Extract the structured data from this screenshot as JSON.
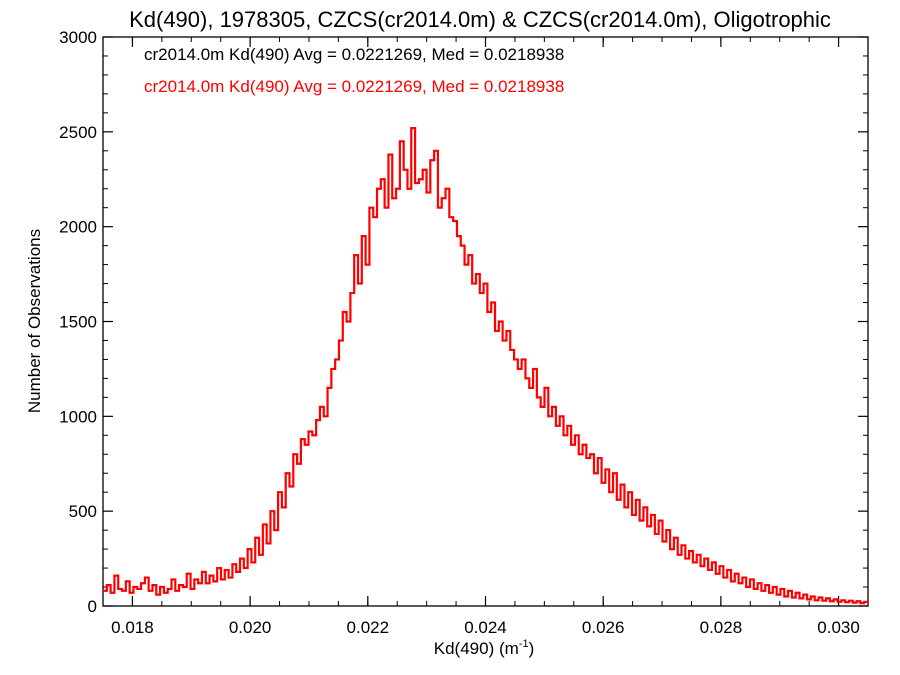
{
  "chart_data": {
    "type": "histogram",
    "title": "Kd(490), 1978305, CZCS(cr2014.0m) & CZCS(cr2014.0m), Oligotrophic",
    "xlabel": "Kd(490) (m",
    "xlabel_sup": "-1",
    "xlabel_close": ")",
    "ylabel": "Number of Observations",
    "xlim": [
      0.0175,
      0.0305
    ],
    "ylim": [
      0,
      3000
    ],
    "x_ticks": [
      0.018,
      0.02,
      0.022,
      0.024,
      0.026,
      0.028,
      0.03
    ],
    "x_tick_labels": [
      "0.018",
      "0.020",
      "0.022",
      "0.024",
      "0.026",
      "0.028",
      "0.030"
    ],
    "y_ticks": [
      0,
      500,
      1000,
      1500,
      2000,
      2500,
      3000
    ],
    "y_tick_labels": [
      "0",
      "500",
      "1000",
      "1500",
      "2000",
      "2500",
      "3000"
    ],
    "grid": false,
    "legend_position": "top-left",
    "legend": [
      {
        "text": "cr2014.0m Kd(490) Avg = 0.0221269, Med = 0.0218938",
        "color": "#000000"
      },
      {
        "text": "cr2014.0m Kd(490) Avg = 0.0221269, Med = 0.0218938",
        "color": "#ff0000"
      }
    ],
    "series": [
      {
        "color": "#ff0000",
        "bin_width": 6.51e-05,
        "x_start": 0.0175,
        "values": [
          80,
          110,
          70,
          160,
          90,
          80,
          130,
          70,
          100,
          90,
          120,
          150,
          80,
          110,
          60,
          100,
          70,
          90,
          140,
          80,
          110,
          100,
          170,
          90,
          140,
          120,
          180,
          120,
          160,
          130,
          200,
          140,
          190,
          150,
          220,
          180,
          250,
          200,
          300,
          230,
          360,
          270,
          430,
          330,
          500,
          400,
          600,
          520,
          700,
          630,
          800,
          750,
          880,
          850,
          920,
          900,
          980,
          1050,
          1000,
          1150,
          1250,
          1300,
          1400,
          1550,
          1500,
          1650,
          1850,
          1700,
          1950,
          1800,
          2100,
          2050,
          2200,
          2250,
          2100,
          2380,
          2150,
          2200,
          2450,
          2300,
          2200,
          2520,
          2230,
          2250,
          2300,
          2180,
          2350,
          2400,
          2100,
          2150,
          2200,
          2050,
          2030,
          1950,
          1900,
          1800,
          1850,
          1700,
          1750,
          1650,
          1700,
          1550,
          1600,
          1450,
          1500,
          1400,
          1450,
          1350,
          1300,
          1250,
          1300,
          1200,
          1150,
          1250,
          1100,
          1050,
          1150,
          1000,
          1050,
          950,
          1000,
          900,
          950,
          850,
          900,
          800,
          850,
          780,
          800,
          700,
          780,
          650,
          720,
          600,
          700,
          560,
          640,
          520,
          600,
          480,
          560,
          450,
          520,
          420,
          480,
          380,
          450,
          340,
          400,
          300,
          360,
          270,
          320,
          250,
          290,
          230,
          270,
          210,
          250,
          190,
          230,
          170,
          210,
          150,
          190,
          130,
          170,
          120,
          150,
          100,
          140,
          90,
          120,
          80,
          110,
          70,
          100,
          60,
          90,
          50,
          80,
          45,
          70,
          40,
          60,
          35,
          50,
          30,
          45,
          28,
          40,
          25,
          35,
          22,
          30,
          20,
          28,
          18,
          25,
          15,
          22
        ]
      }
    ]
  }
}
